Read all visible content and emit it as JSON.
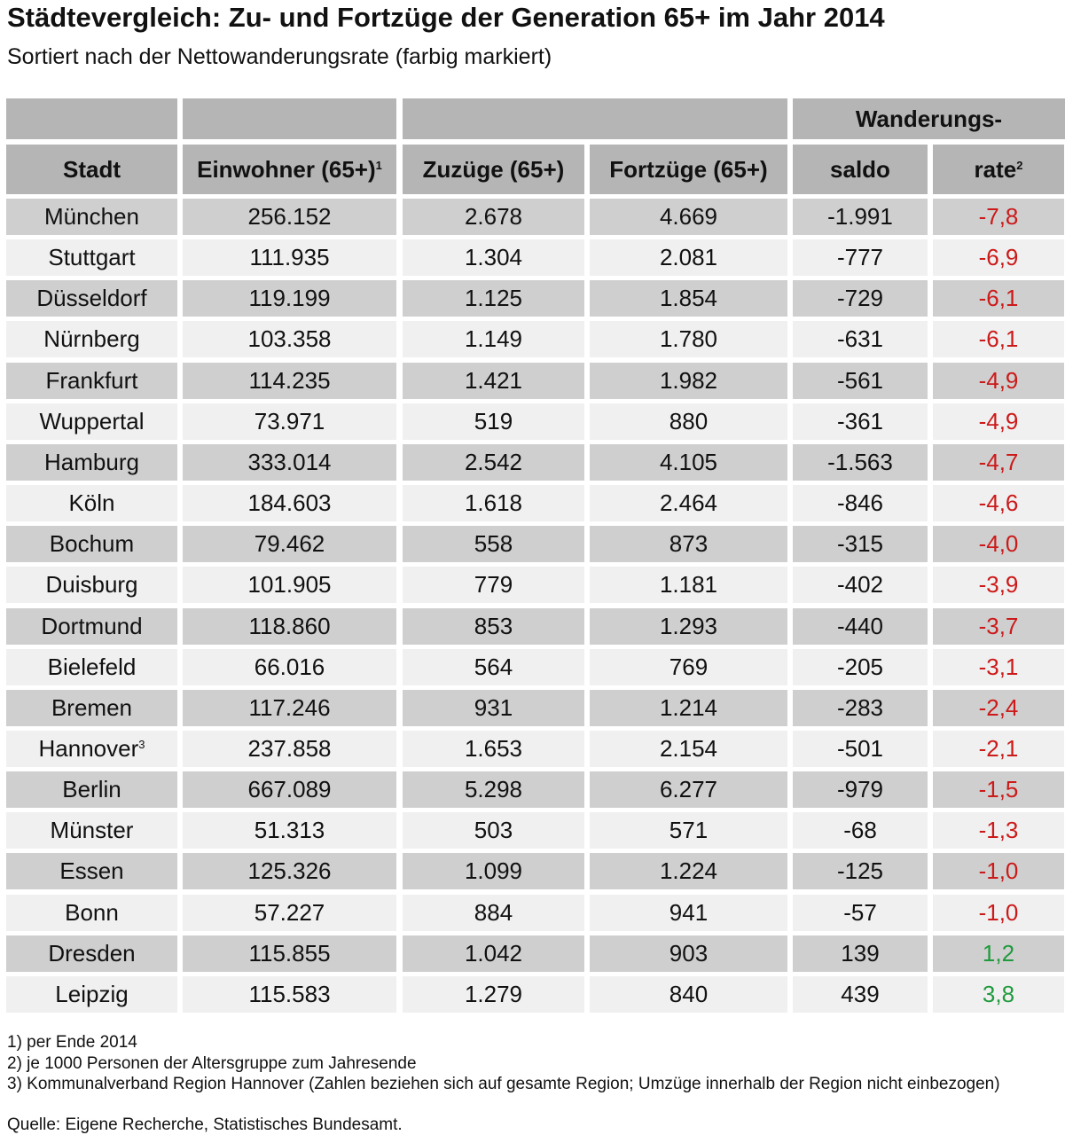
{
  "header": {
    "title": "Städtevergleich: Zu- und Fortzüge der Generation 65+ im Jahr 2014",
    "subtitle": "Sortiert nach der Nettowanderungsrate (farbig markiert)"
  },
  "table": {
    "group_label": "Wanderungs-",
    "columns": [
      "Stadt",
      {
        "text": "Einwohner (65+)",
        "sup": "1"
      },
      "Zuzüge (65+)",
      "Fortzüge (65+)",
      "saldo",
      {
        "text": "rate",
        "sup": "2"
      }
    ],
    "rows": [
      [
        "München",
        "256.152",
        "2.678",
        "4.669",
        "-1.991",
        "-7,8"
      ],
      [
        "Stuttgart",
        "111.935",
        "1.304",
        "2.081",
        "-777",
        "-6,9"
      ],
      [
        "Düsseldorf",
        "119.199",
        "1.125",
        "1.854",
        "-729",
        "-6,1"
      ],
      [
        "Nürnberg",
        "103.358",
        "1.149",
        "1.780",
        "-631",
        "-6,1"
      ],
      [
        "Frankfurt",
        "114.235",
        "1.421",
        "1.982",
        "-561",
        "-4,9"
      ],
      [
        "Wuppertal",
        "73.971",
        "519",
        "880",
        "-361",
        "-4,9"
      ],
      [
        "Hamburg",
        "333.014",
        "2.542",
        "4.105",
        "-1.563",
        "-4,7"
      ],
      [
        "Köln",
        "184.603",
        "1.618",
        "2.464",
        "-846",
        "-4,6"
      ],
      [
        "Bochum",
        "79.462",
        "558",
        "873",
        "-315",
        "-4,0"
      ],
      [
        "Duisburg",
        "101.905",
        "779",
        "1.181",
        "-402",
        "-3,9"
      ],
      [
        "Dortmund",
        "118.860",
        "853",
        "1.293",
        "-440",
        "-3,7"
      ],
      [
        "Bielefeld",
        "66.016",
        "564",
        "769",
        "-205",
        "-3,1"
      ],
      [
        "Bremen",
        "117.246",
        "931",
        "1.214",
        "-283",
        "-2,4"
      ],
      [
        {
          "text": "Hannover",
          "sup": "3"
        },
        "237.858",
        "1.653",
        "2.154",
        "-501",
        "-2,1"
      ],
      [
        "Berlin",
        "667.089",
        "5.298",
        "6.277",
        "-979",
        "-1,5"
      ],
      [
        "Münster",
        "51.313",
        "503",
        "571",
        "-68",
        "-1,3"
      ],
      [
        "Essen",
        "125.326",
        "1.099",
        "1.224",
        "-125",
        "-1,0"
      ],
      [
        "Bonn",
        "57.227",
        "884",
        "941",
        "-57",
        "-1,0"
      ],
      [
        "Dresden",
        "115.855",
        "1.042",
        "903",
        "139",
        "1,2"
      ],
      [
        "Leipzig",
        "115.583",
        "1.279",
        "840",
        "439",
        "3,8"
      ]
    ],
    "rate_colors": [
      "#cc1a1a",
      "#cc1a1a",
      "#cc1a1a",
      "#cc1a1a",
      "#cc1a1a",
      "#cc1a1a",
      "#cc1a1a",
      "#cc1a1a",
      "#cc1a1a",
      "#cc1a1a",
      "#cc1a1a",
      "#cc1a1a",
      "#cc1a1a",
      "#cc1a1a",
      "#cc1a1a",
      "#cc1a1a",
      "#cc1a1a",
      "#cc1a1a",
      "#1f9a3c",
      "#1f9a3c"
    ]
  },
  "footnotes": [
    "1) per Ende 2014",
    "2) je 1000 Personen der Altersgruppe zum Jahresende",
    "3) Kommunalverband Region Hannover (Zahlen beziehen sich auf gesamte Region; Umzüge innerhalb der Region nicht einbezogen)"
  ],
  "source": "Quelle: Eigene Recherche, Statistisches Bundesamt."
}
